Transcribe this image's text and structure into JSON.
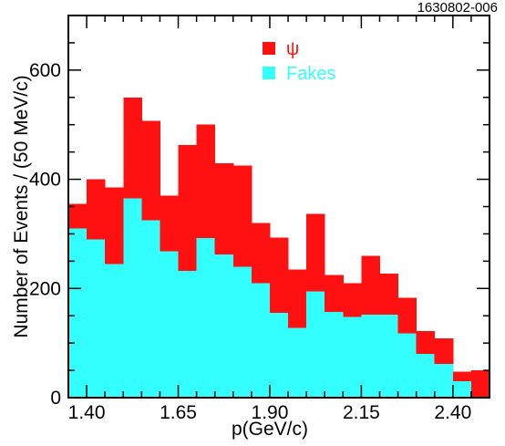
{
  "figure_id": "1630802-006",
  "chart_data": {
    "type": "bar",
    "subtype": "stacked-histogram",
    "title": "",
    "xlabel": "p(GeV/c)",
    "ylabel": "Number of Events / (50 MeV/c)",
    "x_bin_edges": [
      1.35,
      1.4,
      1.45,
      1.5,
      1.55,
      1.6,
      1.65,
      1.7,
      1.75,
      1.8,
      1.85,
      1.9,
      1.95,
      2.0,
      2.05,
      2.1,
      2.15,
      2.2,
      2.25,
      2.3,
      2.35,
      2.4,
      2.45,
      2.5
    ],
    "xlim": [
      1.35,
      2.5
    ],
    "ylim": [
      0,
      700
    ],
    "x_ticks": [
      1.4,
      1.65,
      1.9,
      2.15,
      2.4
    ],
    "x_tick_labels": [
      "1.40",
      "1.65",
      "1.90",
      "2.15",
      "2.40"
    ],
    "y_ticks": [
      0,
      200,
      400,
      600
    ],
    "y_tick_labels": [
      "0",
      "200",
      "400",
      "600"
    ],
    "series": [
      {
        "name": "Fakes",
        "color": "#33ffff",
        "values": [
          310,
          290,
          245,
          365,
          325,
          268,
          232,
          292,
          262,
          240,
          210,
          155,
          128,
          195,
          157,
          148,
          152,
          152,
          118,
          80,
          62,
          30,
          0
        ]
      },
      {
        "name": "ψ",
        "color": "#ff1111",
        "values": [
          45,
          110,
          140,
          185,
          182,
          102,
          231,
          208,
          167,
          185,
          110,
          138,
          107,
          142,
          68,
          62,
          108,
          75,
          65,
          42,
          47,
          18,
          50
        ],
        "comment_total": [
          355,
          400,
          385,
          550,
          507,
          370,
          463,
          500,
          429,
          425,
          320,
          293,
          235,
          337,
          225,
          210,
          260,
          227,
          183,
          122,
          109,
          48,
          50
        ]
      }
    ],
    "legend": {
      "placement": "top-center",
      "entries": [
        {
          "label": "ψ",
          "color": "#ff1111",
          "text_color": "#ff1111"
        },
        {
          "label": "Fakes",
          "color": "#33ffff",
          "text_color": "#33ffff"
        }
      ]
    },
    "grid": false
  }
}
